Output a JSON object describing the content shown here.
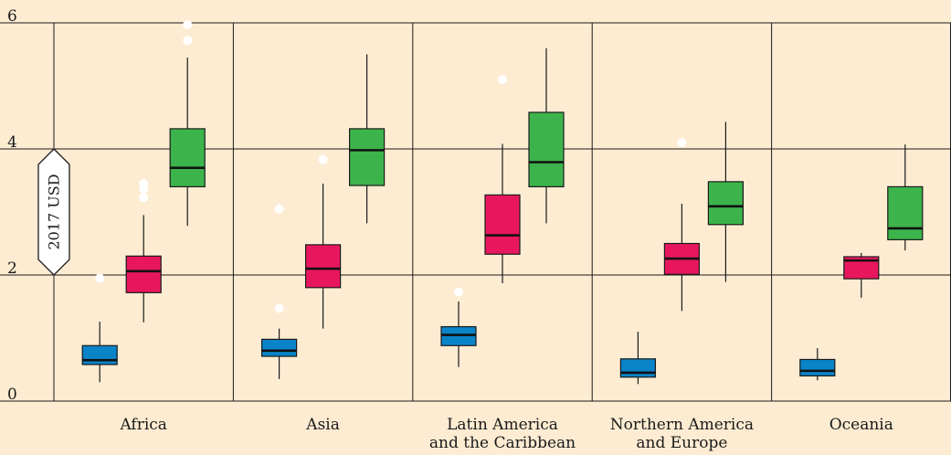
{
  "chart_data": {
    "type": "boxplot",
    "ylabel": "2017 USD",
    "ylim": [
      0,
      6
    ],
    "yticks": [
      0,
      2,
      4,
      6
    ],
    "grid": true,
    "categories": [
      {
        "label": [
          "Africa"
        ]
      },
      {
        "label": [
          "Asia"
        ]
      },
      {
        "label": [
          "Latin America",
          "and the Caribbean"
        ]
      },
      {
        "label": [
          "Northern America",
          "and Europe"
        ]
      },
      {
        "label": [
          "Oceania"
        ]
      }
    ],
    "series": [
      {
        "color": "#0a84c9",
        "boxes": [
          {
            "min": 0.3,
            "q1": 0.58,
            "median": 0.65,
            "q3": 0.88,
            "max": 1.26,
            "outliers": [
              1.95
            ]
          },
          {
            "min": 0.35,
            "q1": 0.71,
            "median": 0.8,
            "q3": 0.98,
            "max": 1.15,
            "outliers": [
              1.47,
              3.05
            ]
          },
          {
            "min": 0.54,
            "q1": 0.88,
            "median": 1.05,
            "q3": 1.18,
            "max": 1.58,
            "outliers": [
              1.73
            ]
          },
          {
            "min": 0.27,
            "q1": 0.38,
            "median": 0.45,
            "q3": 0.67,
            "max": 1.1,
            "outliers": []
          },
          {
            "min": 0.33,
            "q1": 0.4,
            "median": 0.48,
            "q3": 0.66,
            "max": 0.84,
            "outliers": []
          }
        ]
      },
      {
        "color": "#e8175d",
        "boxes": [
          {
            "min": 1.25,
            "q1": 1.72,
            "median": 2.06,
            "q3": 2.3,
            "max": 2.95,
            "outliers": [
              3.23,
              3.37,
              3.45
            ]
          },
          {
            "min": 1.15,
            "q1": 1.8,
            "median": 2.1,
            "q3": 2.48,
            "max": 3.45,
            "outliers": [
              3.83
            ]
          },
          {
            "min": 1.87,
            "q1": 2.33,
            "median": 2.63,
            "q3": 3.27,
            "max": 4.08,
            "outliers": [
              5.1
            ]
          },
          {
            "min": 1.43,
            "q1": 2.01,
            "median": 2.26,
            "q3": 2.5,
            "max": 3.13,
            "outliers": [
              4.1
            ]
          },
          {
            "min": 1.64,
            "q1": 1.94,
            "median": 2.23,
            "q3": 2.29,
            "max": 2.35,
            "outliers": []
          }
        ]
      },
      {
        "color": "#3cb44b",
        "boxes": [
          {
            "min": 2.78,
            "q1": 3.4,
            "median": 3.7,
            "q3": 4.32,
            "max": 5.45,
            "outliers": [
              5.72,
              5.97
            ]
          },
          {
            "min": 2.82,
            "q1": 3.42,
            "median": 3.98,
            "q3": 4.32,
            "max": 5.5,
            "outliers": []
          },
          {
            "min": 2.82,
            "q1": 3.4,
            "median": 3.79,
            "q3": 4.58,
            "max": 5.6,
            "outliers": []
          },
          {
            "min": 1.89,
            "q1": 2.8,
            "median": 3.09,
            "q3": 3.48,
            "max": 4.43,
            "outliers": []
          },
          {
            "min": 2.39,
            "q1": 2.56,
            "median": 2.74,
            "q3": 3.4,
            "max": 4.07,
            "outliers": []
          }
        ]
      }
    ]
  }
}
